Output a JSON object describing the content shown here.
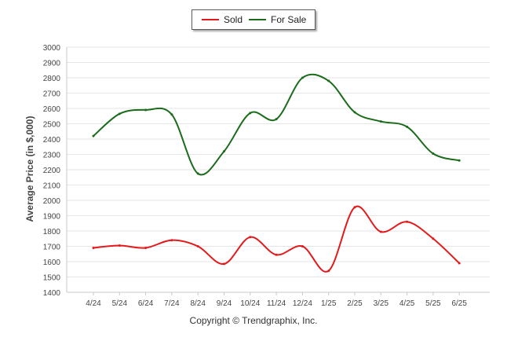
{
  "chart_data": {
    "type": "line",
    "ylabel": "Average Price (in $,000)",
    "ylim": [
      1400,
      3000
    ],
    "yticks": [
      1400,
      1500,
      1600,
      1700,
      1800,
      1900,
      2000,
      2100,
      2200,
      2300,
      2400,
      2500,
      2600,
      2700,
      2800,
      2900,
      3000
    ],
    "categories": [
      "4/24",
      "5/24",
      "6/24",
      "7/24",
      "8/24",
      "9/24",
      "10/24",
      "11/24",
      "12/24",
      "1/25",
      "2/25",
      "3/25",
      "4/25",
      "5/25",
      "6/25"
    ],
    "legend_position": "top-center",
    "grid": true,
    "series": [
      {
        "name": "Sold",
        "color": "#e31a1c",
        "values": [
          1690,
          1705,
          1690,
          1740,
          1700,
          1585,
          1760,
          1645,
          1700,
          1540,
          1955,
          1795,
          1860,
          1750,
          1590
        ]
      },
      {
        "name": "For Sale",
        "color": "#1a6b1a",
        "values": [
          2420,
          2565,
          2590,
          2560,
          2175,
          2320,
          2570,
          2530,
          2800,
          2780,
          2575,
          2515,
          2480,
          2305,
          2260
        ]
      }
    ]
  },
  "footer": {
    "copyright": "Copyright © Trendgraphix, Inc."
  }
}
